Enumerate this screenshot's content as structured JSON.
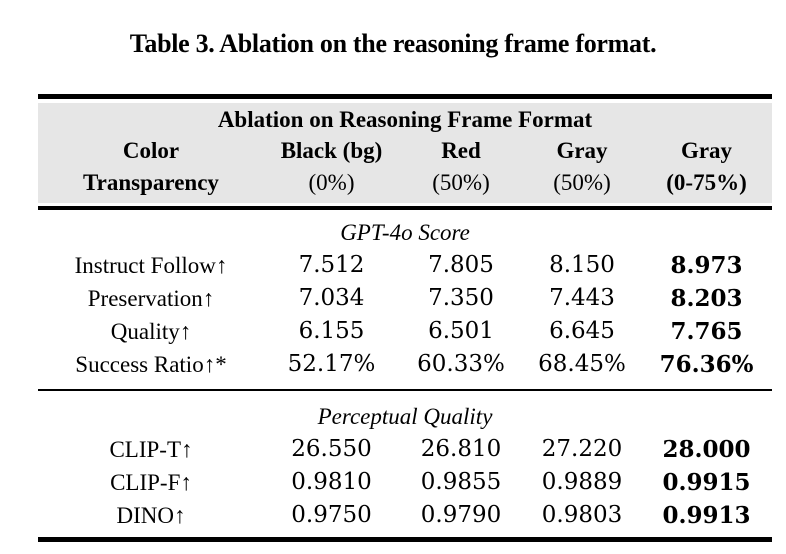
{
  "caption": "Table 3. Ablation on the reasoning frame format.",
  "table": {
    "group_title": "Ablation on Reasoning Frame Format",
    "header": {
      "label_line1": "Color",
      "label_line2": "Transparency",
      "columns": [
        {
          "name": "Black (bg)",
          "transparency": "(0%)"
        },
        {
          "name": "Red",
          "transparency": "(50%)"
        },
        {
          "name": "Gray",
          "transparency": "(50%)"
        },
        {
          "name": "Gray",
          "transparency": "(0-75%)"
        }
      ]
    },
    "sections": [
      {
        "heading": "GPT-4o Score",
        "rows": [
          {
            "label": "Instruct Follow↑",
            "values": [
              "7.512",
              "7.805",
              "8.150",
              "8.973"
            ]
          },
          {
            "label": "Preservation↑",
            "values": [
              "7.034",
              "7.350",
              "7.443",
              "8.203"
            ]
          },
          {
            "label": "Quality↑",
            "values": [
              "6.155",
              "6.501",
              "6.645",
              "7.765"
            ]
          },
          {
            "label": "Success Ratio↑*",
            "values": [
              "52.17%",
              "60.33%",
              "68.45%",
              "76.36%"
            ]
          }
        ]
      },
      {
        "heading": "Perceptual Quality",
        "rows": [
          {
            "label": "CLIP-T↑",
            "values": [
              "26.550",
              "26.810",
              "27.220",
              "28.000"
            ]
          },
          {
            "label": "CLIP-F↑",
            "values": [
              "0.9810",
              "0.9855",
              "0.9889",
              "0.9915"
            ]
          },
          {
            "label": "DINO↑",
            "values": [
              "0.9750",
              "0.9790",
              "0.9803",
              "0.9913"
            ]
          }
        ]
      }
    ]
  },
  "colors": {
    "page_bg": "#ffffff",
    "header_bg": "#e6e6e6",
    "rule": "#000000",
    "text": "#000000"
  }
}
